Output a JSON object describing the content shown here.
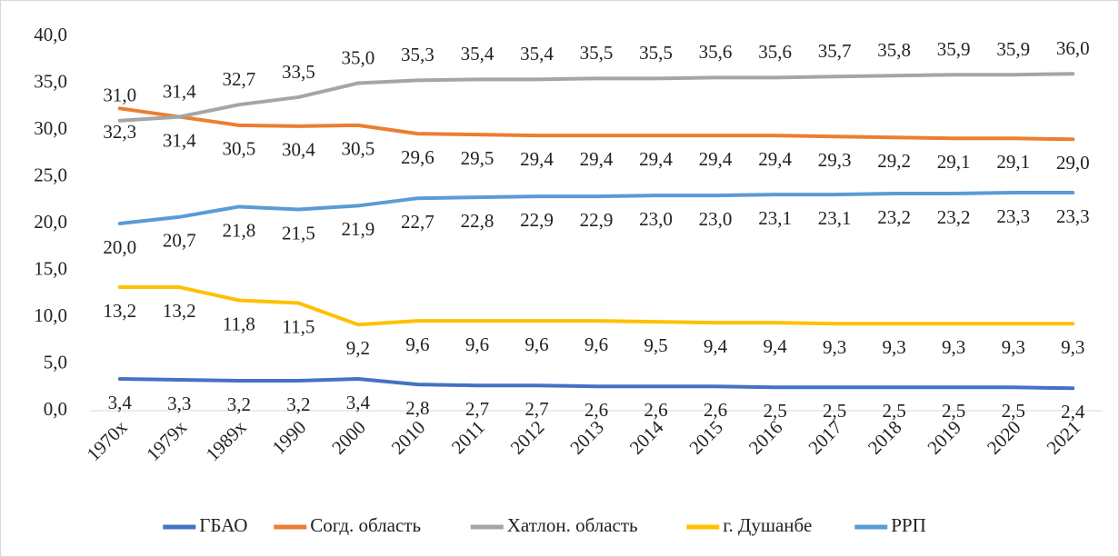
{
  "chart_data": {
    "type": "line",
    "categories": [
      "1970х",
      "1979х",
      "1989х",
      "1990",
      "2000",
      "2010",
      "2011",
      "2012",
      "2013",
      "2014",
      "2015",
      "2016",
      "2017",
      "2018",
      "2019",
      "2020",
      "2021"
    ],
    "series": [
      {
        "name": "ГБАО",
        "color": "#4472c4",
        "label_position": "below",
        "values": [
          3.4,
          3.3,
          3.2,
          3.2,
          3.4,
          2.8,
          2.7,
          2.7,
          2.6,
          2.6,
          2.6,
          2.5,
          2.5,
          2.5,
          2.5,
          2.5,
          2.4
        ],
        "value_labels": [
          "3,4",
          "3,3",
          "3,2",
          "3,2",
          "3,4",
          "2,8",
          "2,7",
          "2,7",
          "2,6",
          "2,6",
          "2,6",
          "2,5",
          "2,5",
          "2,5",
          "2,5",
          "2,5",
          "2,4"
        ]
      },
      {
        "name": "Согд. область",
        "color": "#ed7d31",
        "label_position": "below",
        "values": [
          32.3,
          31.4,
          30.5,
          30.4,
          30.5,
          29.6,
          29.5,
          29.4,
          29.4,
          29.4,
          29.4,
          29.4,
          29.3,
          29.2,
          29.1,
          29.1,
          29.0
        ],
        "value_labels": [
          "32,3",
          "31,4",
          "30,5",
          "30,4",
          "30,5",
          "29,6",
          "29,5",
          "29,4",
          "29,4",
          "29,4",
          "29,4",
          "29,4",
          "29,3",
          "29,2",
          "29,1",
          "29,1",
          "29,0"
        ]
      },
      {
        "name": "Хатлон. область",
        "color": "#a5a5a5",
        "label_position": "above",
        "values": [
          31.0,
          31.4,
          32.7,
          33.5,
          35.0,
          35.3,
          35.4,
          35.4,
          35.5,
          35.5,
          35.6,
          35.6,
          35.7,
          35.8,
          35.9,
          35.9,
          36.0
        ],
        "value_labels": [
          "31,0",
          "31,4",
          "32,7",
          "33,5",
          "35,0",
          "35,3",
          "35,4",
          "35,4",
          "35,5",
          "35,5",
          "35,6",
          "35,6",
          "35,7",
          "35,8",
          "35,9",
          "35,9",
          "36,0"
        ]
      },
      {
        "name": "г. Душанбе",
        "color": "#ffc000",
        "label_position": "below",
        "values": [
          13.2,
          13.2,
          11.8,
          11.5,
          9.2,
          9.6,
          9.6,
          9.6,
          9.6,
          9.5,
          9.4,
          9.4,
          9.3,
          9.3,
          9.3,
          9.3,
          9.3
        ],
        "value_labels": [
          "13,2",
          "13,2",
          "11,8",
          "11,5",
          "9,2",
          "9,6",
          "9,6",
          "9,6",
          "9,6",
          "9,5",
          "9,4",
          "9,4",
          "9,3",
          "9,3",
          "9,3",
          "9,3",
          "9,3"
        ]
      },
      {
        "name": "РРП",
        "color": "#5b9bd5",
        "label_position": "below",
        "values": [
          20.0,
          20.7,
          21.8,
          21.5,
          21.9,
          22.7,
          22.8,
          22.9,
          22.9,
          23.0,
          23.0,
          23.1,
          23.1,
          23.2,
          23.2,
          23.3,
          23.3
        ],
        "value_labels": [
          "20,0",
          "20,7",
          "21,8",
          "21,5",
          "21,9",
          "22,7",
          "22,8",
          "22,9",
          "22,9",
          "23,0",
          "23,0",
          "23,1",
          "23,1",
          "23,2",
          "23,2",
          "23,3",
          "23,3"
        ]
      }
    ],
    "ylim": [
      0,
      40
    ],
    "yticks": [
      {
        "value": 0,
        "label": "0,0"
      },
      {
        "value": 5,
        "label": "5,0"
      },
      {
        "value": 10,
        "label": "10,0"
      },
      {
        "value": 15,
        "label": "15,0"
      },
      {
        "value": 20,
        "label": "20,0"
      },
      {
        "value": 25,
        "label": "25,0"
      },
      {
        "value": 30,
        "label": "30,0"
      },
      {
        "value": 35,
        "label": "35,0"
      },
      {
        "value": 40,
        "label": "40,0"
      }
    ],
    "grid": false,
    "legend": "bottom"
  }
}
